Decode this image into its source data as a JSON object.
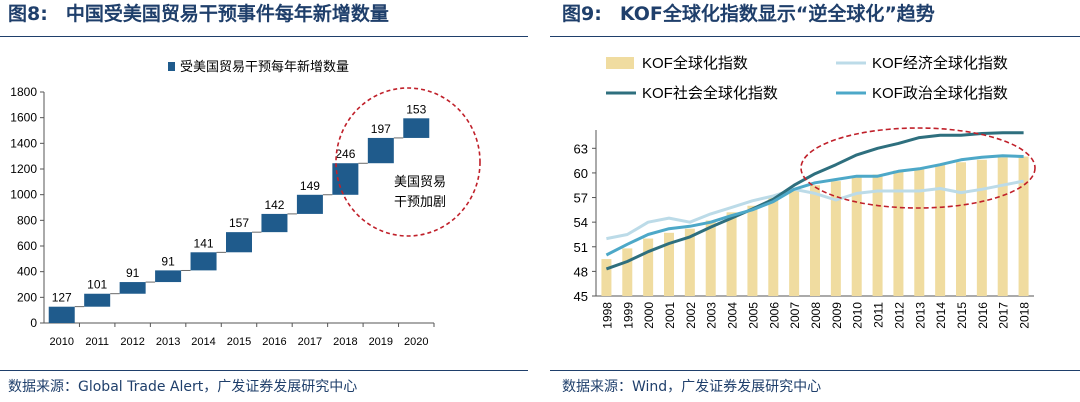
{
  "left": {
    "fig_label": "图8:",
    "title": "中国受美国贸易干预事件每年新增数量",
    "source": "数据来源：Global Trade Alert，广发证券发展研究中心",
    "chart_data": {
      "type": "bar",
      "title": "中国受美国贸易干预事件每年新增数量",
      "legend": [
        "受美国贸易干预每年新增数量"
      ],
      "categories": [
        "2010",
        "2011",
        "2012",
        "2013",
        "2014",
        "2015",
        "2016",
        "2017",
        "2018",
        "2019",
        "2020"
      ],
      "values": [
        127,
        101,
        91,
        91,
        141,
        157,
        142,
        149,
        246,
        197,
        153
      ],
      "data_labels": [
        "127",
        "101",
        "91",
        "91",
        "141",
        "157",
        "142",
        "149",
        "246",
        "197",
        "153"
      ],
      "ylim": [
        0,
        1800
      ],
      "yticks": [
        "0",
        "200",
        "400",
        "600",
        "800",
        "1000",
        "1200",
        "1400",
        "1600",
        "1800"
      ],
      "annotation": [
        "美国贸易",
        "干预加剧"
      ],
      "color": "#1f5b8c"
    }
  },
  "right": {
    "fig_label": "图9:",
    "title": "KOF全球化指数显示“逆全球化”趋势",
    "source": "数据来源：Wind，广发证券发展研究中心",
    "chart_data": {
      "type": "line",
      "title": "KOF全球化指数显示“逆全球化”趋势",
      "categories": [
        "1998",
        "1999",
        "2000",
        "2001",
        "2002",
        "2003",
        "2004",
        "2005",
        "2006",
        "2007",
        "2008",
        "2009",
        "2010",
        "2011",
        "2012",
        "2013",
        "2014",
        "2015",
        "2016",
        "2017",
        "2018"
      ],
      "ylim": [
        45,
        64.5
      ],
      "yticks": [
        "45",
        "48",
        "51",
        "54",
        "57",
        "60",
        "63"
      ],
      "bar_series": {
        "name": "KOF全球化指数",
        "color": "#f0dca0",
        "values": [
          49.5,
          50.8,
          52.0,
          52.7,
          53.2,
          54.2,
          55.2,
          56.0,
          57.0,
          58.0,
          58.5,
          59.0,
          59.5,
          59.8,
          60.3,
          60.6,
          61.0,
          61.3,
          61.6,
          61.9,
          62.0
        ]
      },
      "series": [
        {
          "name": "KOF经济全球化指数",
          "color": "#bcdbe8",
          "values": [
            52.0,
            52.5,
            54.0,
            54.5,
            54.0,
            55.0,
            55.8,
            56.6,
            57.2,
            58.0,
            57.5,
            56.7,
            57.5,
            57.8,
            57.8,
            57.8,
            58.1,
            57.6,
            58.0,
            58.5,
            59.0
          ]
        },
        {
          "name": "KOF社会全球化指数",
          "color": "#2e6f7e",
          "values": [
            48.3,
            49.2,
            50.4,
            51.4,
            52.2,
            53.4,
            54.5,
            55.6,
            56.8,
            58.5,
            59.9,
            61.0,
            62.2,
            63.0,
            63.6,
            64.3,
            64.6,
            64.6,
            64.8,
            64.9,
            64.9
          ]
        },
        {
          "name": "KOF政治全球化指数",
          "color": "#4da8c8",
          "values": [
            50.0,
            51.3,
            52.5,
            53.2,
            53.5,
            54.0,
            54.8,
            55.5,
            56.5,
            58.0,
            58.8,
            59.2,
            59.6,
            59.6,
            60.2,
            60.5,
            61.0,
            61.6,
            61.9,
            62.1,
            62.0
          ]
        }
      ],
      "legend": [
        "KOF全球化指数",
        "KOF经济全球化指数",
        "KOF社会全球化指数",
        "KOF政治全球化指数"
      ]
    }
  }
}
